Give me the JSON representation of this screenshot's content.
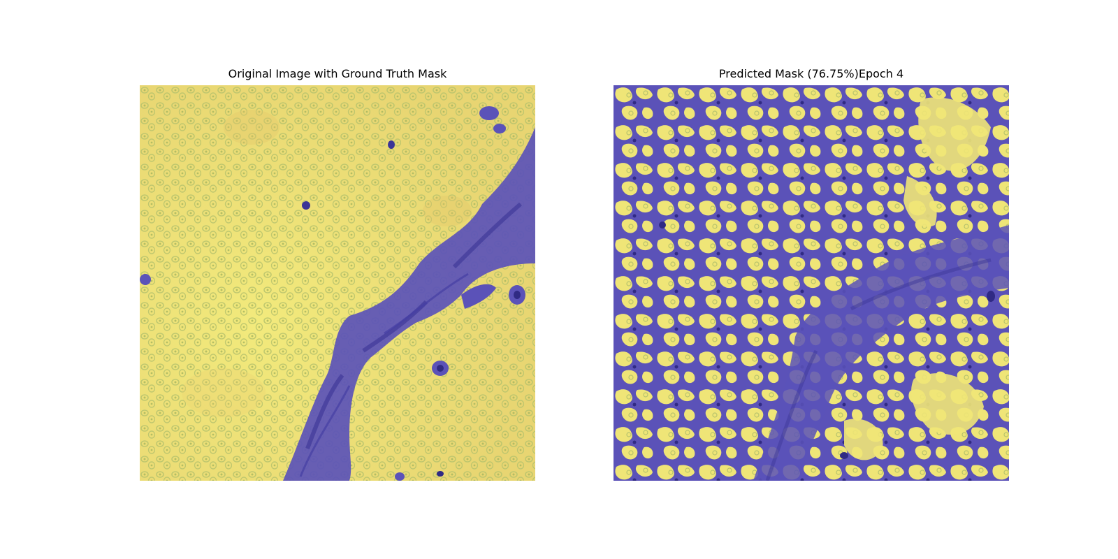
{
  "figure": {
    "left_panel": {
      "title": "Original Image with Ground Truth Mask"
    },
    "right_panel": {
      "title": "Predicted Mask (76.75%)Epoch 4",
      "score_percent": 76.75,
      "epoch": 4
    }
  },
  "colors": {
    "mask_positive": "#efe577",
    "mask_negative": "#5b52b8",
    "nuclei": "#b7c36d",
    "dark_spots": "#302a84"
  }
}
